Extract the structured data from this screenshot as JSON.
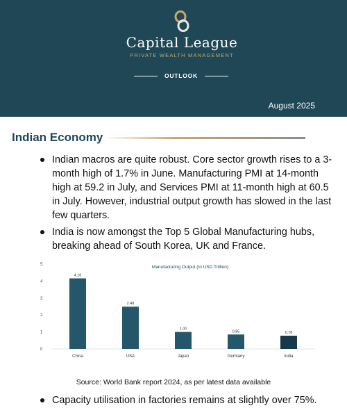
{
  "header": {
    "brand": "Capital League",
    "tagline": "PRIVATE WEALTH MANAGEMENT",
    "section_label": "OUTLOOK",
    "date": "August 2025"
  },
  "section": {
    "title": "Indian Economy"
  },
  "bullets": [
    "Indian macros are quite robust. Core sector growth rises to a 3-month high of 1.7% in June. Manufacturing PMI at 14-month high at 59.2 in July, and Services PMI at 11-month high at 60.5 in July. However, industrial output growth has slowed in the last few quarters.",
    "India is now amongst the Top 5 Global Manufacturing hubs, breaking ahead of South Korea, UK and France."
  ],
  "source": "Source: World Bank report 2024, as per latest data available",
  "bottom_bullet": "Capacity utilisation in factories remains at slightly over 75%.",
  "colors": {
    "header_bg": "#1f4756",
    "gold": "#c9a96b",
    "bar": "#24576a",
    "bar_highlight": "#173a4a"
  },
  "chart_data": {
    "type": "bar",
    "title": "Manufacturing Output (In USD Trillion)",
    "categories": [
      "China",
      "USA",
      "Japan",
      "Germany",
      "India"
    ],
    "values": [
      4.16,
      2.49,
      1.0,
      0.85,
      0.78
    ],
    "value_labels": [
      "4.16",
      "2.49",
      "1.00",
      "0.85",
      "0.78"
    ],
    "y_ticks": [
      "0",
      "1",
      "2",
      "3",
      "4",
      "5"
    ],
    "ylim": [
      0,
      5
    ],
    "grid": false,
    "legend": "none"
  }
}
